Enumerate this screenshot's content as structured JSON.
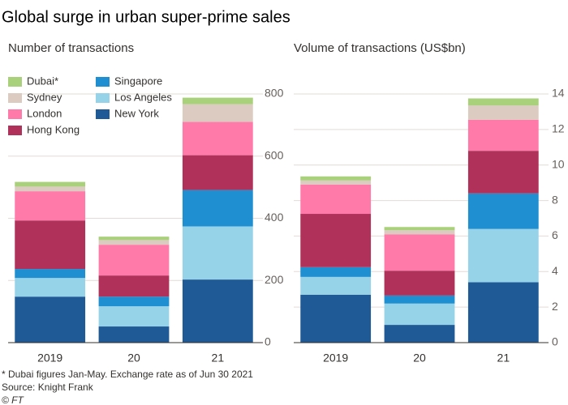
{
  "title": "Global surge in urban super-prime sales",
  "footnote": "* Dubai figures Jan-May. Exchange rate as of Jun 30 2021",
  "source": "Source: Knight Frank",
  "credit": "© FT",
  "chart_data": [
    {
      "type": "stacked-bar",
      "subtitle": "Number of transactions",
      "categories": [
        "2019",
        "20",
        "21"
      ],
      "ylim": [
        0,
        800
      ],
      "yticks": [
        0,
        200,
        400,
        600,
        800
      ],
      "grid": true,
      "legend": "top-left",
      "series": [
        {
          "name": "New York",
          "color": "#1f5a96",
          "values": [
            148,
            52,
            203
          ]
        },
        {
          "name": "Los Angeles",
          "color": "#96d3e8",
          "values": [
            60,
            65,
            171
          ]
        },
        {
          "name": "Singapore",
          "color": "#1f8fd1",
          "values": [
            29,
            31,
            117
          ]
        },
        {
          "name": "Hong Kong",
          "color": "#b0325a",
          "values": [
            156,
            68,
            112
          ]
        },
        {
          "name": "London",
          "color": "#ff7aa8",
          "values": [
            94,
            99,
            107
          ]
        },
        {
          "name": "Sydney",
          "color": "#dccbc0",
          "values": [
            15,
            15,
            57
          ]
        },
        {
          "name": "Dubai*",
          "color": "#a9d07a",
          "values": [
            15,
            11,
            21
          ]
        }
      ]
    },
    {
      "type": "stacked-bar",
      "subtitle": "Volume of transactions (US$bn)",
      "categories": [
        "2019",
        "20",
        "21"
      ],
      "ylim": [
        0,
        14
      ],
      "yticks": [
        0,
        2,
        4,
        6,
        8,
        10,
        12,
        14
      ],
      "grid": true,
      "series": [
        {
          "color": "#1f5a96",
          "values": [
            2.7,
            1.0,
            3.4
          ]
        },
        {
          "color": "#96d3e8",
          "values": [
            1.0,
            1.2,
            3.0
          ]
        },
        {
          "color": "#1f8fd1",
          "values": [
            0.55,
            0.45,
            2.0
          ]
        },
        {
          "color": "#b0325a",
          "values": [
            3.0,
            1.4,
            2.4
          ]
        },
        {
          "color": "#ff7aa8",
          "values": [
            1.65,
            2.05,
            1.75
          ]
        },
        {
          "color": "#dccbc0",
          "values": [
            0.23,
            0.23,
            0.8
          ]
        },
        {
          "color": "#a9d07a",
          "values": [
            0.23,
            0.18,
            0.4
          ]
        }
      ]
    }
  ]
}
